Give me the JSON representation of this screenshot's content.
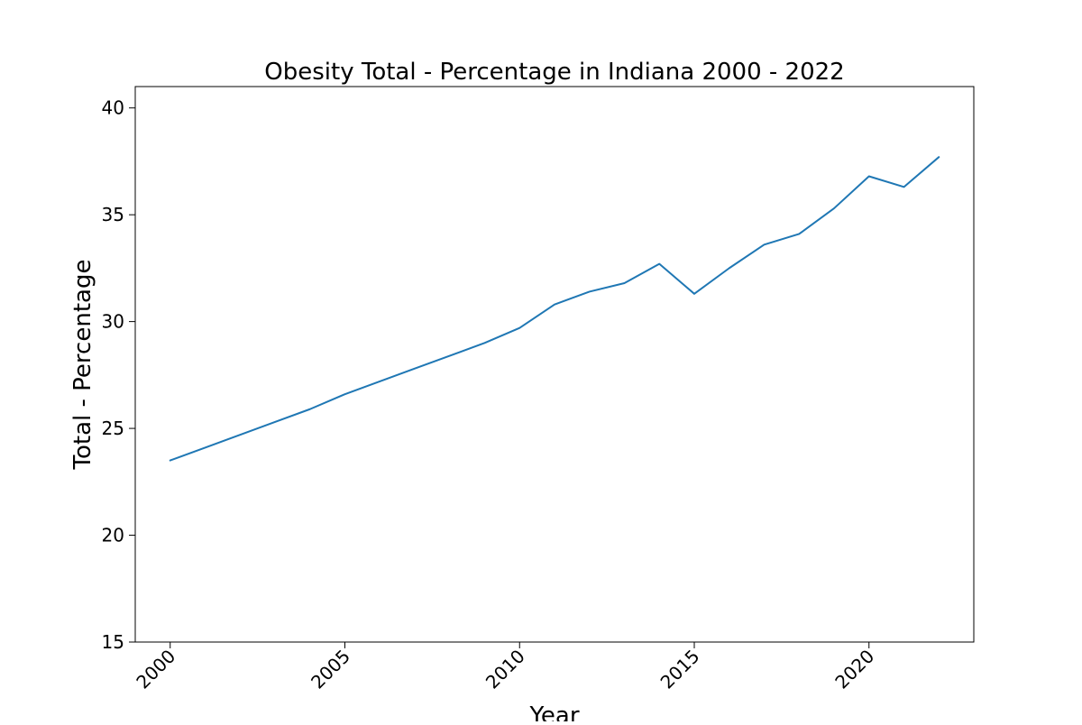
{
  "chart_data": {
    "type": "line",
    "title": "Obesity Total - Percentage in Indiana 2000 - 2022",
    "xlabel": "Year",
    "ylabel": "Total - Percentage",
    "x": [
      2000,
      2001,
      2002,
      2003,
      2004,
      2005,
      2006,
      2007,
      2008,
      2009,
      2010,
      2011,
      2012,
      2013,
      2014,
      2015,
      2016,
      2017,
      2018,
      2019,
      2020,
      2021,
      2022
    ],
    "series": [
      {
        "values": [
          23.5,
          24.1,
          24.7,
          25.3,
          25.9,
          26.6,
          27.2,
          27.8,
          28.4,
          29.0,
          29.7,
          30.8,
          31.4,
          31.8,
          32.7,
          31.3,
          32.5,
          33.6,
          34.1,
          35.3,
          36.8,
          36.3,
          37.7
        ],
        "color": "#1f77b4"
      }
    ],
    "xlim": [
      1999,
      2023
    ],
    "ylim": [
      15,
      41
    ],
    "xticks": [
      "2000",
      "2005",
      "2010",
      "2015",
      "2020"
    ],
    "yticks": [
      "15",
      "20",
      "25",
      "30",
      "35",
      "40"
    ],
    "grid": false
  }
}
